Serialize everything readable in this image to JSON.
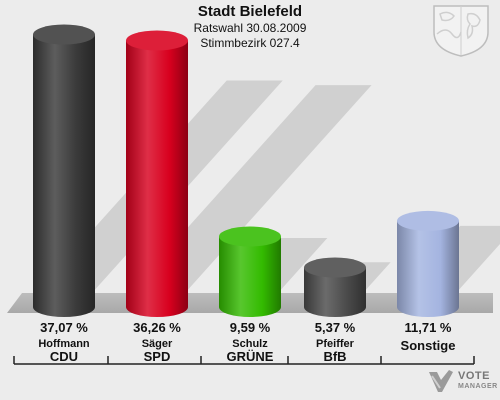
{
  "header": {
    "title": "Stadt Bielefeld",
    "subtitle1": "Ratswahl 30.08.2009",
    "subtitle2": "Stimmbezirk 027.4"
  },
  "branding": {
    "line1": "VOTE",
    "line2": "MANAGER"
  },
  "chart_data": {
    "type": "bar",
    "categories": [
      "CDU",
      "SPD",
      "GRÜNE",
      "BfB",
      "Sonstige"
    ],
    "candidates": [
      "Hoffmann",
      "Säger",
      "Schulz",
      "Pfeiffer",
      ""
    ],
    "values": [
      37.07,
      36.26,
      9.59,
      5.37,
      11.71
    ],
    "value_labels": [
      "37,07 %",
      "36,26 %",
      "9,59 %",
      "5,37 %",
      "11,71 %"
    ],
    "colors": [
      "#3a3a3a",
      "#d8001e",
      "#33bb00",
      "#4a4a4a",
      "#a4b4e0"
    ],
    "ylim": [
      0,
      40
    ],
    "grid": false,
    "legend": "none"
  }
}
